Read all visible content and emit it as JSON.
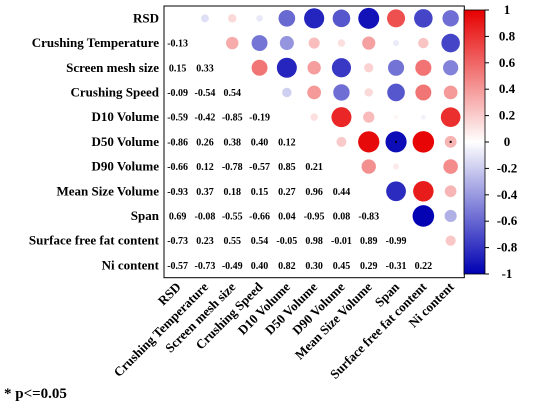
{
  "chart_data": {
    "type": "heatmap",
    "variables": [
      "RSD",
      "Crushing Temperature",
      "Screen mesh size",
      "Crushing Speed",
      "D10 Volume",
      "D50 Volume",
      "D90 Volume",
      "Mean Size Volume",
      "Span",
      "Surface free fat content",
      "Ni content"
    ],
    "lower": [
      [],
      [
        -0.13
      ],
      [
        0.15,
        0.33
      ],
      [
        -0.09,
        -0.54,
        0.54
      ],
      [
        -0.59,
        -0.42,
        -0.85,
        -0.19
      ],
      [
        -0.86,
        0.26,
        0.38,
        0.4,
        0.12
      ],
      [
        -0.66,
        0.12,
        -0.78,
        -0.57,
        0.85,
        0.21
      ],
      [
        -0.93,
        0.37,
        0.18,
        0.15,
        0.27,
        0.96,
        0.44
      ],
      [
        0.69,
        -0.08,
        -0.55,
        -0.66,
        0.04,
        -0.95,
        0.08,
        -0.83
      ],
      [
        -0.73,
        0.23,
        0.55,
        0.54,
        -0.05,
        0.98,
        -0.01,
        0.89,
        -0.99
      ],
      [
        -0.57,
        -0.73,
        -0.49,
        0.4,
        0.82,
        0.3,
        0.45,
        0.29,
        -0.31,
        0.22
      ]
    ],
    "significant_cells": [
      [
        5,
        8
      ],
      [
        5,
        10
      ]
    ],
    "colorbar": {
      "min": -1,
      "max": 1,
      "ticks": [
        "1",
        "0.8",
        "0.6",
        "0.4",
        "0.2",
        "0",
        "-0.2",
        "-0.4",
        "-0.6",
        "-0.8",
        "-1"
      ]
    },
    "colors": {
      "negative": "#0000b3",
      "neutral": "#ffffff",
      "positive": "#e60000"
    }
  },
  "footnote": "* p<=0.05"
}
